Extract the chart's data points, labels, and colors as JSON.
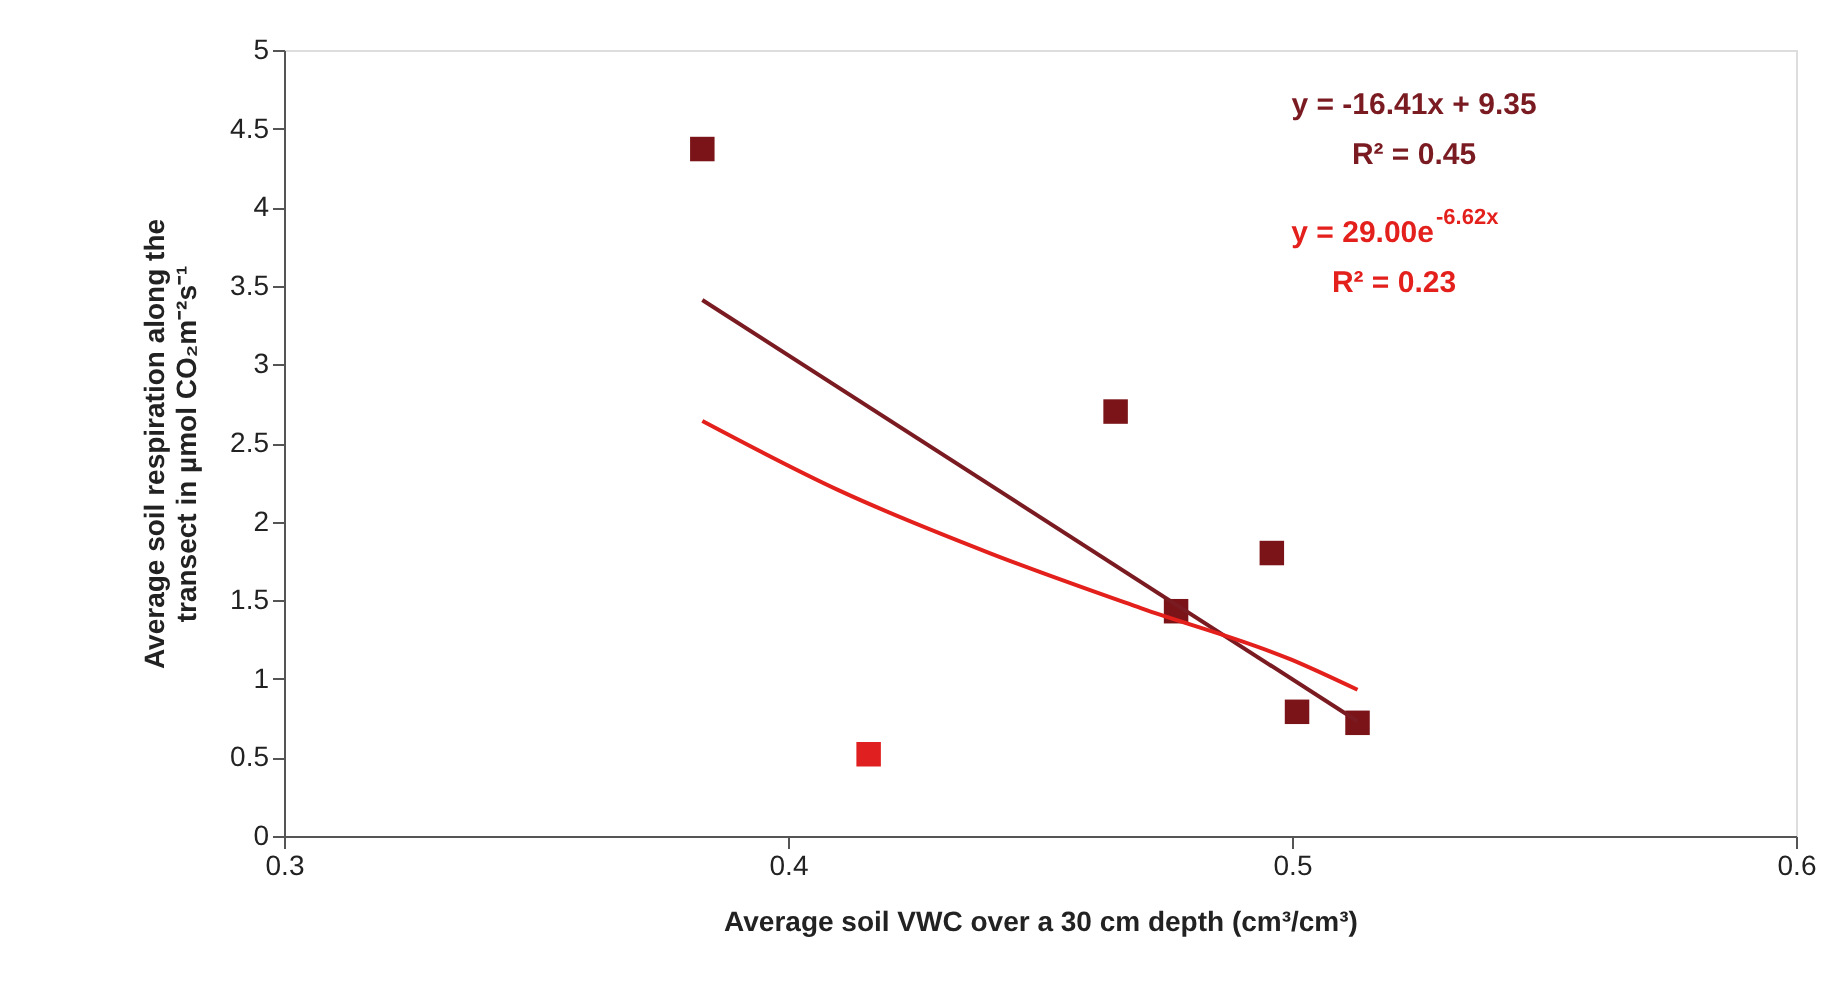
{
  "chart_data": {
    "type": "scatter",
    "xlabel": "Average soil VWC over a 30 cm depth (cm³/cm³)",
    "ylabel": "Average soil respiration along the\ntransect in µmol CO₂m⁻²s⁻¹",
    "xlim": [
      0.3,
      0.6
    ],
    "xticks": [
      0.3,
      0.4,
      0.5,
      0.6
    ],
    "ylim": [
      0,
      5
    ],
    "yticks": [
      0,
      0.5,
      1,
      1.5,
      2,
      2.5,
      3,
      3.5,
      4,
      4.5,
      5
    ],
    "grid": false,
    "marker": "square",
    "series": [
      {
        "x": [
          0.383,
          0.416,
          0.465,
          0.477,
          0.496,
          0.501,
          0.513
        ],
        "values": [
          4.37,
          0.52,
          2.7,
          1.43,
          1.8,
          0.79,
          0.72
        ],
        "colors": [
          "#7a1418",
          "#e02020",
          "#7a1418",
          "#7a1418",
          "#7a1418",
          "#7a1418",
          "#7a1418"
        ]
      },
      {
        "type": "line",
        "marker": "none",
        "color": "#7a1b22",
        "x": [
          0.383,
          0.513
        ],
        "values": [
          3.41,
          0.73
        ]
      },
      {
        "type": "line",
        "marker": "none",
        "color": "#e3201c",
        "x": [
          0.383,
          0.41,
          0.44,
          0.47,
          0.5,
          0.513
        ],
        "values": [
          2.64,
          2.2,
          1.8,
          1.45,
          1.12,
          0.93
        ]
      }
    ],
    "annotations": [
      "y = -16.41x + 9.35",
      "R² = 0.45",
      "y = 29.00e$^{-6.62x}$",
      "R² = 0.23"
    ]
  }
}
